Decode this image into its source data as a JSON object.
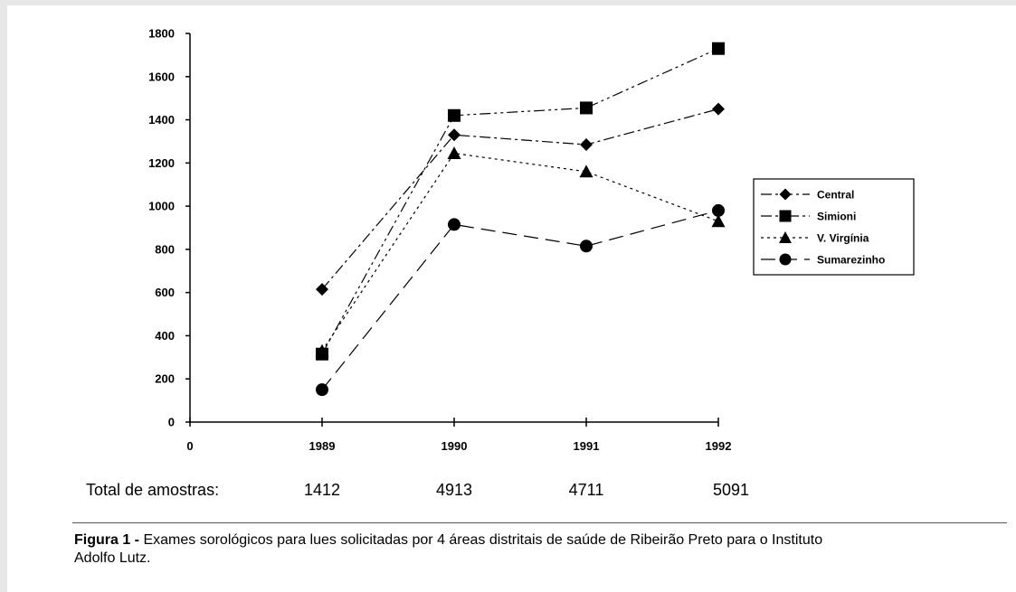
{
  "chart_data": {
    "type": "line",
    "title": "",
    "xlabel": "",
    "ylabel": "",
    "x_ticks": [
      "0",
      "1989",
      "1990",
      "1991",
      "1992"
    ],
    "categories": [
      "1989",
      "1990",
      "1991",
      "1992"
    ],
    "ylim": [
      0,
      1800
    ],
    "y_ticks": [
      0,
      200,
      400,
      600,
      800,
      1000,
      1200,
      1400,
      1600,
      1800
    ],
    "grid": false,
    "legend_position": "right",
    "series": [
      {
        "name": "Central",
        "marker": "diamond",
        "dash": "dash-dot",
        "values": [
          615,
          1330,
          1285,
          1450
        ]
      },
      {
        "name": "Simioni",
        "marker": "square",
        "dash": "dash-dot-dot",
        "values": [
          315,
          1420,
          1455,
          1730
        ]
      },
      {
        "name": "V. Virgínia",
        "marker": "triangle",
        "dash": "dotted",
        "values": [
          330,
          1245,
          1160,
          930
        ]
      },
      {
        "name": "Sumarezinho",
        "marker": "circle",
        "dash": "dashed",
        "values": [
          150,
          915,
          815,
          980
        ]
      }
    ],
    "line_color": "#000000"
  },
  "totals": {
    "label": "Total de amostras:",
    "values": [
      "1412",
      "4913",
      "4711",
      "5091"
    ]
  },
  "caption": {
    "prefix": "Figura 1 -",
    "text": " Exames sorológicos para lues solicitadas por 4 áreas distritais de saúde de Ribeirão Preto para o Instituto Adolfo Lutz."
  }
}
